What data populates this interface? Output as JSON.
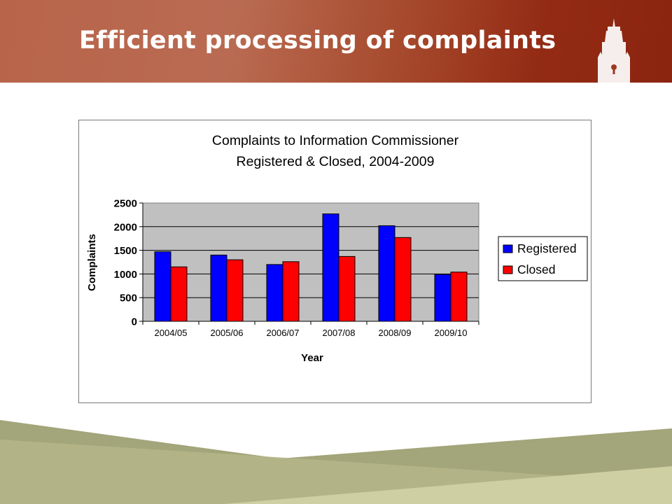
{
  "slide": {
    "title": "Efficient processing of complaints"
  },
  "colors": {
    "header_band": "#a6492c",
    "registered": "#0000ff",
    "closed": "#ff0000",
    "plot_background": "#c0c0c0",
    "footer_olive": "#a3a57a",
    "footer_light": "#cfcfa4"
  },
  "chart_data": {
    "type": "bar",
    "title_lines": [
      "Complaints to Information Commissioner",
      "Registered & Closed, 2004-2009"
    ],
    "xlabel": "Year",
    "ylabel": "Complaints",
    "categories": [
      "2004/05",
      "2005/06",
      "2006/07",
      "2007/08",
      "2008/09",
      "2009/10"
    ],
    "series": [
      {
        "name": "Registered",
        "color": "#0000ff",
        "values": [
          1470,
          1400,
          1200,
          2270,
          2020,
          990
        ]
      },
      {
        "name": "Closed",
        "color": "#ff0000",
        "values": [
          1150,
          1300,
          1260,
          1370,
          1770,
          1040
        ]
      }
    ],
    "ylim": [
      0,
      2500
    ],
    "yticks": [
      0,
      500,
      1000,
      1500,
      2000,
      2500
    ],
    "grid": true,
    "legend_position": "right"
  }
}
